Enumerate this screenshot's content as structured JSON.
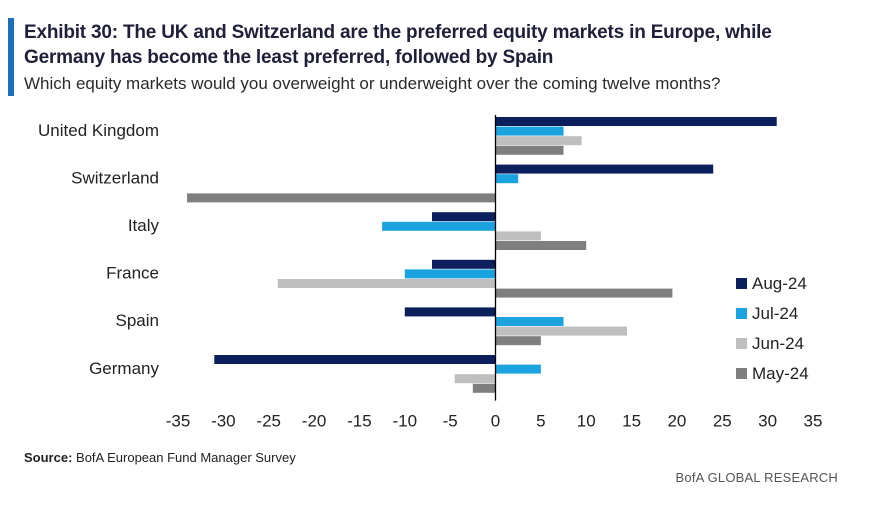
{
  "header": {
    "title": "Exhibit 30: The UK and Switzerland are the preferred equity markets in Europe, while Germany has become the least preferred, followed by Spain",
    "subtitle": "Which equity markets would you overweight or underweight over the coming twelve months?"
  },
  "footer": {
    "source_label": "Source:",
    "source_text": "BofA European Fund Manager Survey",
    "brand": "BofA GLOBAL RESEARCH"
  },
  "chart_data": {
    "type": "bar",
    "orientation": "horizontal",
    "categories": [
      "United Kingdom",
      "Switzerland",
      "Italy",
      "France",
      "Spain",
      "Germany"
    ],
    "series": [
      {
        "name": "Aug-24",
        "color": "#0b1f5c",
        "values": [
          31,
          24,
          -7,
          -7,
          -10,
          -31
        ]
      },
      {
        "name": "Jul-24",
        "color": "#1ba3e0",
        "values": [
          7.5,
          2.5,
          -12.5,
          -10,
          7.5,
          5
        ]
      },
      {
        "name": "Jun-24",
        "color": "#bfbfbf",
        "values": [
          9.5,
          0,
          5,
          -24,
          14.5,
          -4.5
        ]
      },
      {
        "name": "May-24",
        "color": "#7f7f7f",
        "values": [
          7.5,
          -34,
          10,
          19.5,
          5,
          -2.5
        ]
      }
    ],
    "xlim": [
      -35,
      35
    ],
    "xticks": [
      -35,
      -30,
      -25,
      -20,
      -15,
      -10,
      -5,
      0,
      5,
      10,
      15,
      20,
      25,
      30,
      35
    ],
    "legend_position": "right",
    "grid": false
  }
}
